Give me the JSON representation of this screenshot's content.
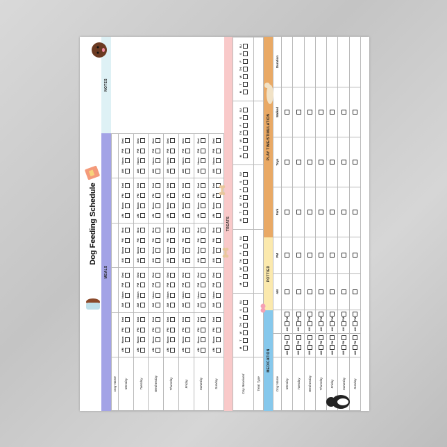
{
  "title": "Dog Feeding Schedule",
  "colors": {
    "meals": "#a3a3e6",
    "notes": "#def1f5",
    "treats": "#f9c9c9",
    "medication": "#86c8ec",
    "pottied": "#fbe9ad",
    "play": "#e9a965"
  },
  "days": [
    "Monday",
    "Tuesday",
    "Wednesday",
    "Thursday",
    "Friday",
    "Saturday",
    "Sunday"
  ],
  "meals": {
    "header": "MEALS",
    "dog_name_label": "Dog Name",
    "slots": [
      "AM",
      "Noon",
      "PM",
      "Bed"
    ],
    "blocks": 5
  },
  "notes": {
    "header": "NOTES"
  },
  "treats": {
    "header": "TREATS",
    "rows": [
      "Day Received",
      "Treat Type"
    ],
    "weekdays": [
      "M",
      "T",
      "W",
      "TH",
      "F",
      "S",
      "SU"
    ],
    "blocks": 5
  },
  "medication": {
    "header": "MEDICATION",
    "dog_name_label": "Dog Name",
    "slots": [
      "AM",
      "PM"
    ],
    "blocks": 2
  },
  "pottied": {
    "header": "POTTIED",
    "columns": [
      "AM",
      "PM"
    ]
  },
  "play": {
    "header": "PLAY TIME/STIMULATION",
    "columns": [
      "Park",
      "Toys",
      "Walked",
      "Duration"
    ]
  },
  "images": [
    "dog-bowl-icon",
    "food-bag-icon",
    "brown-dog-icon",
    "bone-icon",
    "pills-icon",
    "cat-icon",
    "tuxedo-dog-icon"
  ]
}
